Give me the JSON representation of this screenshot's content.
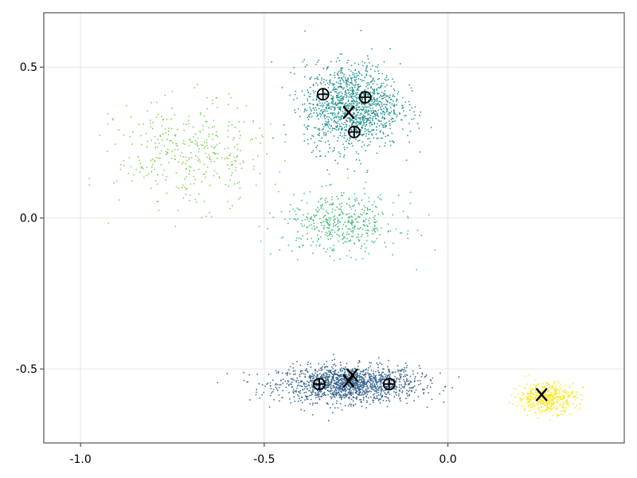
{
  "chart_data": {
    "type": "scatter",
    "xlim": [
      -1.1,
      0.48
    ],
    "ylim": [
      -0.745,
      0.68
    ],
    "grid": true,
    "x_ticks": [
      {
        "value": -1.0,
        "label": "-1.0"
      },
      {
        "value": -0.5,
        "label": "-0.5"
      },
      {
        "value": 0.0,
        "label": "0.0"
      }
    ],
    "y_ticks": [
      {
        "value": 0.5,
        "label": "0.5"
      },
      {
        "value": 0.0,
        "label": "0.0"
      },
      {
        "value": -0.5,
        "label": "-0.5"
      }
    ],
    "clusters": [
      {
        "color": "#35638d",
        "center": [
          -0.27,
          -0.55
        ],
        "spread": [
          0.095,
          0.03
        ],
        "count": 1500
      },
      {
        "color": "#21908d",
        "center": [
          -0.26,
          0.37
        ],
        "spread": [
          0.065,
          0.07
        ],
        "count": 1300
      },
      {
        "color": "#3fbc73",
        "center": [
          -0.29,
          -0.02
        ],
        "spread": [
          0.08,
          0.05
        ],
        "count": 450
      },
      {
        "color": "#7ad151",
        "center": [
          -0.7,
          0.21
        ],
        "spread": [
          0.1,
          0.085
        ],
        "count": 380
      },
      {
        "color": "#fde725",
        "center": [
          0.27,
          -0.595
        ],
        "spread": [
          0.04,
          0.025
        ],
        "count": 500
      }
    ],
    "centroids_x": [
      {
        "x": -0.27,
        "y": -0.54
      },
      {
        "x": -0.26,
        "y": -0.52
      },
      {
        "x": -0.27,
        "y": 0.35
      },
      {
        "x": 0.255,
        "y": -0.585
      }
    ],
    "centroids_circle_plus": [
      {
        "x": -0.35,
        "y": -0.55
      },
      {
        "x": -0.16,
        "y": -0.55
      },
      {
        "x": -0.34,
        "y": 0.41
      },
      {
        "x": -0.225,
        "y": 0.4
      },
      {
        "x": -0.255,
        "y": 0.285
      }
    ],
    "marker_color": "#000000"
  }
}
